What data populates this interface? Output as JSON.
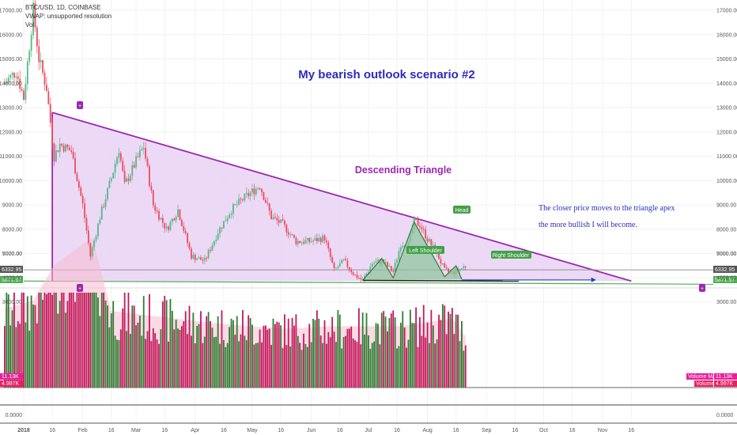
{
  "legend": {
    "symbol": "BTC/USD, 1D, COINBASE",
    "vwap": "VWAP: unsupported resolution",
    "vol": "Vol"
  },
  "annotations": {
    "title": "My bearish outlook scenario #2",
    "pattern": "Descending Triangle",
    "note_line1": "The closer price moves to the triangle apex",
    "note_line2": "the more bullish I will become.",
    "head": "Head",
    "left_shoulder": "Left Shoulder",
    "right_shoulder": "Right Shoulder",
    "marker_top": "+",
    "marker_bottom_left": "+",
    "marker_bottom_right": "+"
  },
  "price_axis": {
    "ticks": [
      "17000.00",
      "16000.00",
      "15000.00",
      "14000.00",
      "13000.00",
      "12000.00",
      "11000.00",
      "10000.00",
      "9000.00",
      "8000.00",
      "7000.00"
    ],
    "price_tag_1": "6332.95",
    "price_tag_2": "5871.97"
  },
  "volume_axis": {
    "ticks": [
      "5000.00",
      "4000.00",
      "3000.00"
    ],
    "tag_1": "11.13K",
    "tag_2": "4.997K",
    "label_ma": "Volume MA",
    "label_vol": "Volume"
  },
  "indicator_axis": {
    "ticks": [
      "0.0000"
    ]
  },
  "time_axis": {
    "labels": [
      "2018",
      "16",
      "Feb",
      "16",
      "Mar",
      "16",
      "Apr",
      "16",
      "May",
      "16",
      "Jun",
      "16",
      "Jul",
      "16",
      "Aug",
      "16",
      "Sep",
      "16",
      "Oct",
      "16",
      "Nov",
      "16"
    ]
  },
  "colors": {
    "up": "#53b987",
    "down": "#eb4d5c",
    "triangle_fill": "#e9d2f4",
    "triangle_line": "#9c27b0",
    "support": "#4caf50",
    "annotation_text": "#2e2bbf",
    "hs_fill": "#8bc59a",
    "hs_line": "#2e7d32"
  },
  "chart_data": {
    "type": "candlestick",
    "symbol": "BTC/USD",
    "interval": "1D",
    "ylim": [
      5500,
      17400
    ],
    "levels": [
      6332.95,
      5871.97
    ],
    "triangle": {
      "upper": [
        {
          "date": "2018-01-16",
          "price": 12800
        },
        {
          "date": "2018-11-16",
          "price": 5871.97
        }
      ],
      "lower": [
        {
          "date": "2018-01-16",
          "price": 5871.97
        },
        {
          "date": "2018-11-16",
          "price": 5871.97
        }
      ]
    },
    "close_path": [
      [
        "2017-12-22",
        14000
      ],
      [
        "2017-12-28",
        14500
      ],
      [
        "2018-01-01",
        13400
      ],
      [
        "2018-01-06",
        17000
      ],
      [
        "2018-01-09",
        15000
      ],
      [
        "2018-01-13",
        13800
      ],
      [
        "2018-01-17",
        11000
      ],
      [
        "2018-01-20",
        11500
      ],
      [
        "2018-01-26",
        11200
      ],
      [
        "2018-02-01",
        9000
      ],
      [
        "2018-02-05",
        6900
      ],
      [
        "2018-02-10",
        8500
      ],
      [
        "2018-02-16",
        10100
      ],
      [
        "2018-02-20",
        11300
      ],
      [
        "2018-02-23",
        9800
      ],
      [
        "2018-03-01",
        10800
      ],
      [
        "2018-03-05",
        11400
      ],
      [
        "2018-03-10",
        9000
      ],
      [
        "2018-03-17",
        8000
      ],
      [
        "2018-03-23",
        8800
      ],
      [
        "2018-03-30",
        6900
      ],
      [
        "2018-04-06",
        6700
      ],
      [
        "2018-04-13",
        7900
      ],
      [
        "2018-04-20",
        8800
      ],
      [
        "2018-04-27",
        9300
      ],
      [
        "2018-05-05",
        9800
      ],
      [
        "2018-05-11",
        8500
      ],
      [
        "2018-05-17",
        8200
      ],
      [
        "2018-05-24",
        7500
      ],
      [
        "2018-05-31",
        7500
      ],
      [
        "2018-06-08",
        7650
      ],
      [
        "2018-06-13",
        6300
      ],
      [
        "2018-06-18",
        6700
      ],
      [
        "2018-06-24",
        6100
      ],
      [
        "2018-06-28",
        5900
      ],
      [
        "2018-07-03",
        6600
      ],
      [
        "2018-07-08",
        6700
      ],
      [
        "2018-07-14",
        6250
      ],
      [
        "2018-07-18",
        7400
      ],
      [
        "2018-07-22",
        7400
      ],
      [
        "2018-07-25",
        8300
      ],
      [
        "2018-07-28",
        8200
      ],
      [
        "2018-08-01",
        7600
      ],
      [
        "2018-08-06",
        7000
      ],
      [
        "2018-08-10",
        6300
      ],
      [
        "2018-08-14",
        6200
      ],
      [
        "2018-08-19",
        6400
      ],
      [
        "2018-08-21",
        6500
      ]
    ],
    "volume_path": [
      [
        "2017-12-22",
        2600
      ],
      [
        "2018-01-06",
        2900
      ],
      [
        "2018-01-17",
        4300
      ],
      [
        "2018-02-06",
        5400
      ],
      [
        "2018-02-16",
        2500
      ],
      [
        "2018-03-10",
        2300
      ],
      [
        "2018-04-13",
        2000
      ],
      [
        "2018-05-17",
        1800
      ],
      [
        "2018-06-13",
        1900
      ],
      [
        "2018-07-18",
        1900
      ],
      [
        "2018-08-14",
        2200
      ],
      [
        "2018-08-21",
        1500
      ]
    ]
  }
}
